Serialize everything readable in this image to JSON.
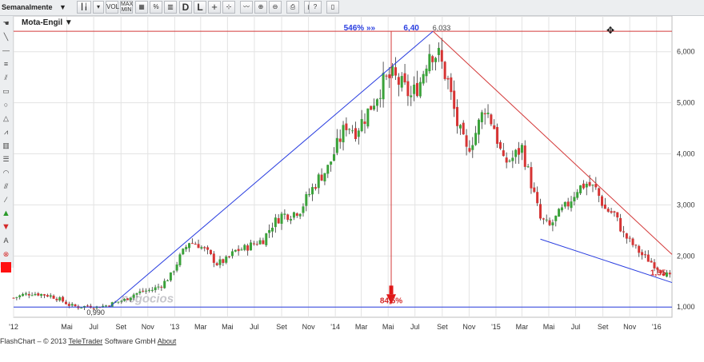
{
  "toolbar": {
    "period_label": "Semanalmente",
    "vol_label": "VOL",
    "maxmin_label": "MAX\nMIN",
    "d_label": "D",
    "l_label": "L",
    "help_label": "?",
    "percent_label": "%"
  },
  "chart_data": {
    "type": "candlestick",
    "title": "Mota-Engil",
    "ylim": [
      0.8,
      6.7
    ],
    "yticks": [
      1.0,
      2.0,
      3.0,
      4.0,
      5.0,
      6.0
    ],
    "ytick_labels": [
      "1,000",
      "2,000",
      "3,000",
      "4,000",
      "5,000",
      "6,000"
    ],
    "xlim": [
      "2012-01-01",
      "2016-02-05"
    ],
    "xticks": [
      {
        "date": "2012-01-01",
        "label": "'12"
      },
      {
        "date": "2012-05-01",
        "label": "Mai"
      },
      {
        "date": "2012-07-01",
        "label": "Jul"
      },
      {
        "date": "2012-09-01",
        "label": "Set"
      },
      {
        "date": "2012-11-01",
        "label": "Nov"
      },
      {
        "date": "2013-01-01",
        "label": "'13"
      },
      {
        "date": "2013-03-01",
        "label": "Mar"
      },
      {
        "date": "2013-05-01",
        "label": "Mai"
      },
      {
        "date": "2013-07-01",
        "label": "Jul"
      },
      {
        "date": "2013-09-01",
        "label": "Set"
      },
      {
        "date": "2013-11-01",
        "label": "Nov"
      },
      {
        "date": "2014-01-01",
        "label": "'14"
      },
      {
        "date": "2014-03-01",
        "label": "Mar"
      },
      {
        "date": "2014-05-01",
        "label": "Mai"
      },
      {
        "date": "2014-07-01",
        "label": "Jul"
      },
      {
        "date": "2014-09-01",
        "label": "Set"
      },
      {
        "date": "2014-11-01",
        "label": "Nov"
      },
      {
        "date": "2015-01-01",
        "label": "'15"
      },
      {
        "date": "2015-03-01",
        "label": "Mar"
      },
      {
        "date": "2015-05-01",
        "label": "Mai"
      },
      {
        "date": "2015-07-01",
        "label": "Jul"
      },
      {
        "date": "2015-09-01",
        "label": "Set"
      },
      {
        "date": "2015-11-01",
        "label": "Nov"
      },
      {
        "date": "2016-01-01",
        "label": "'16"
      }
    ],
    "close_series": [
      [
        "2012-01-01",
        1.18
      ],
      [
        "2012-01-22",
        1.24
      ],
      [
        "2012-02-12",
        1.27
      ],
      [
        "2012-03-04",
        1.25
      ],
      [
        "2012-03-25",
        1.22
      ],
      [
        "2012-04-15",
        1.15
      ],
      [
        "2012-05-06",
        1.04
      ],
      [
        "2012-05-27",
        1.0
      ],
      [
        "2012-06-17",
        1.02
      ],
      [
        "2012-07-08",
        1.0
      ],
      [
        "2012-07-29",
        1.03
      ],
      [
        "2012-08-19",
        1.09
      ],
      [
        "2012-09-09",
        1.14
      ],
      [
        "2012-09-30",
        1.25
      ],
      [
        "2012-10-21",
        1.31
      ],
      [
        "2012-11-11",
        1.34
      ],
      [
        "2012-12-02",
        1.43
      ],
      [
        "2012-12-23",
        1.62
      ],
      [
        "2013-01-13",
        1.98
      ],
      [
        "2013-02-03",
        2.28
      ],
      [
        "2013-02-24",
        2.22
      ],
      [
        "2013-03-17",
        2.06
      ],
      [
        "2013-04-07",
        1.85
      ],
      [
        "2013-04-28",
        1.92
      ],
      [
        "2013-05-19",
        2.1
      ],
      [
        "2013-06-09",
        2.15
      ],
      [
        "2013-06-30",
        2.24
      ],
      [
        "2013-07-21",
        2.32
      ],
      [
        "2013-08-11",
        2.62
      ],
      [
        "2013-09-01",
        2.8
      ],
      [
        "2013-09-22",
        2.82
      ],
      [
        "2013-10-13",
        2.91
      ],
      [
        "2013-11-03",
        3.22
      ],
      [
        "2013-11-24",
        3.52
      ],
      [
        "2013-12-15",
        3.72
      ],
      [
        "2014-01-05",
        4.16
      ],
      [
        "2014-01-26",
        4.58
      ],
      [
        "2014-02-16",
        4.46
      ],
      [
        "2014-03-09",
        4.72
      ],
      [
        "2014-03-30",
        5.05
      ],
      [
        "2014-04-20",
        5.4
      ],
      [
        "2014-05-11",
        5.52
      ],
      [
        "2014-06-01",
        5.34
      ],
      [
        "2014-06-22",
        5.12
      ],
      [
        "2014-07-13",
        5.42
      ],
      [
        "2014-08-03",
        6.03
      ],
      [
        "2014-08-24",
        5.92
      ],
      [
        "2014-09-14",
        5.4
      ],
      [
        "2014-10-05",
        4.58
      ],
      [
        "2014-10-26",
        4.05
      ],
      [
        "2014-11-16",
        4.42
      ],
      [
        "2014-12-07",
        4.92
      ],
      [
        "2014-12-28",
        4.52
      ],
      [
        "2015-01-18",
        3.82
      ],
      [
        "2015-02-08",
        3.92
      ],
      [
        "2015-03-01",
        4.12
      ],
      [
        "2015-03-22",
        3.42
      ],
      [
        "2015-04-12",
        2.72
      ],
      [
        "2015-05-03",
        2.58
      ],
      [
        "2015-05-24",
        2.82
      ],
      [
        "2015-06-14",
        3.02
      ],
      [
        "2015-07-05",
        3.32
      ],
      [
        "2015-07-26",
        3.42
      ],
      [
        "2015-08-16",
        3.3
      ],
      [
        "2015-09-06",
        2.92
      ],
      [
        "2015-09-27",
        2.82
      ],
      [
        "2015-10-18",
        2.42
      ],
      [
        "2015-11-08",
        2.22
      ],
      [
        "2015-11-29",
        2.02
      ],
      [
        "2015-12-20",
        1.88
      ],
      [
        "2016-01-10",
        1.72
      ],
      [
        "2016-02-05",
        1.55
      ]
    ],
    "resistance_level": 6.4,
    "support_level": 1.0,
    "annotations": {
      "gain_label": "546% »»",
      "peak_high_label": "6,40",
      "peak_close_label": "6,033",
      "low_label": "0,990",
      "drop_label": "84,5%",
      "last_label": "1,55"
    },
    "uptrend_line": [
      [
        "2012-08-06",
        1.0
      ],
      [
        "2014-08-11",
        6.4
      ]
    ],
    "downtrend_line": [
      [
        "2014-08-11",
        6.4
      ],
      [
        "2016-02-05",
        2.03
      ]
    ],
    "support_trend_line": [
      [
        "2015-04-12",
        2.33
      ],
      [
        "2016-02-05",
        1.48
      ]
    ],
    "colors": {
      "up": "#3aa23a",
      "down": "#d63434",
      "grid": "#e3e3e3",
      "blue_line": "#2b3fe0",
      "red_line": "#d43a3a"
    }
  },
  "watermark": "negocios",
  "footer": {
    "prefix": "FlashChart – © 2013",
    "teletrader": "TeleTrader",
    "middle": "Software GmbH",
    "about": "About"
  }
}
